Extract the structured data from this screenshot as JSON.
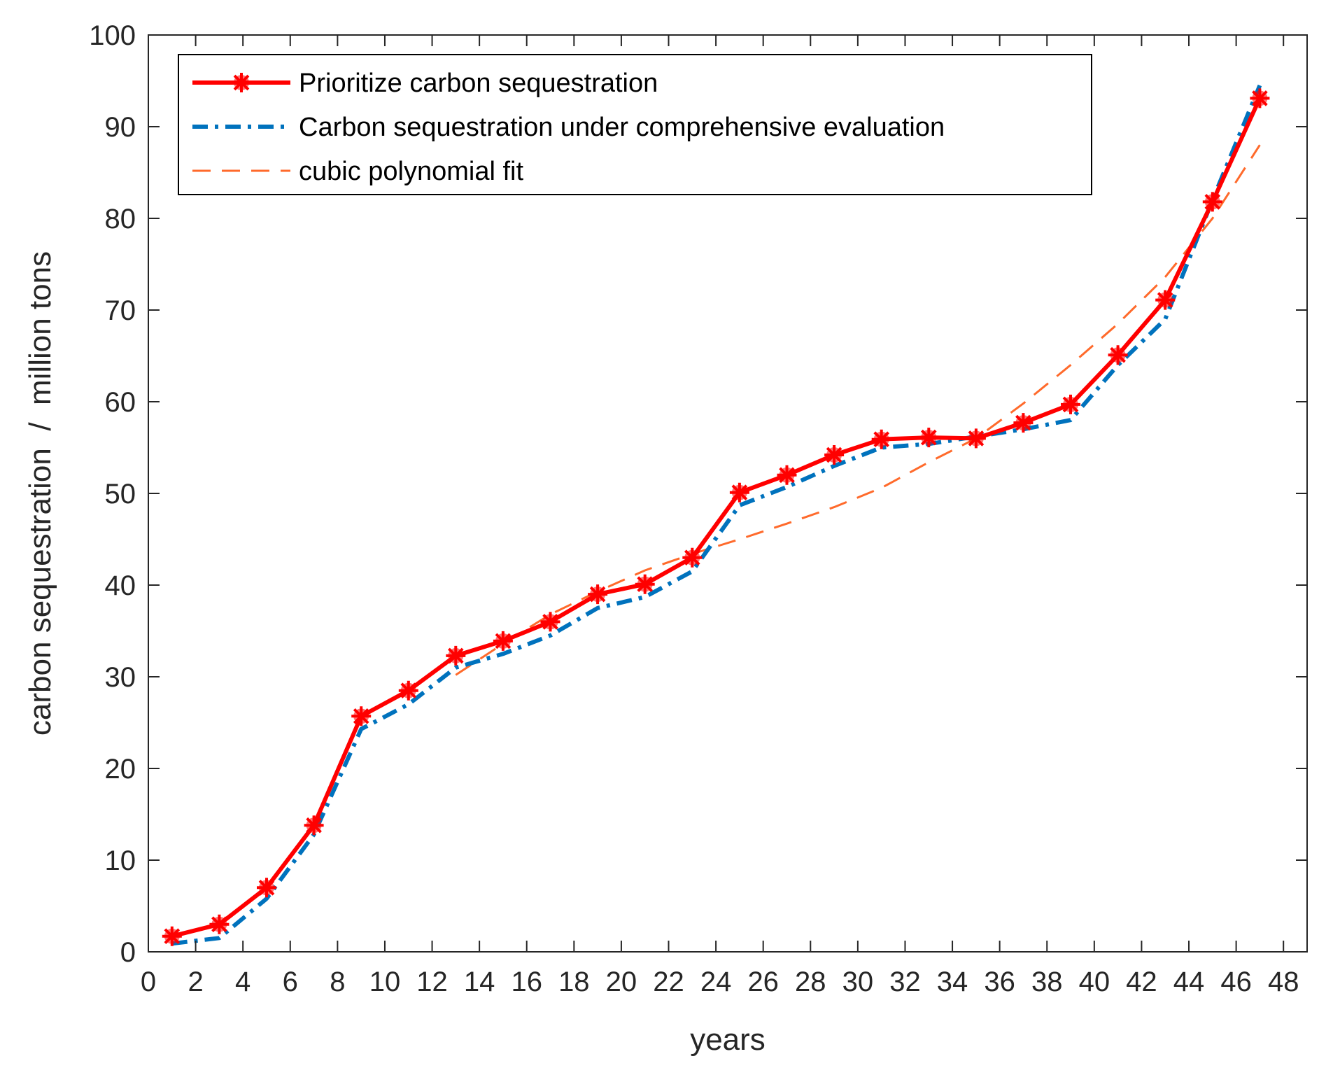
{
  "chart_data": {
    "type": "line",
    "title": "",
    "xlabel": "years",
    "ylabel": "carbon sequestration  /  million tons",
    "xlim": [
      0,
      49
    ],
    "ylim": [
      0,
      100
    ],
    "xticks": [
      0,
      2,
      4,
      6,
      8,
      10,
      12,
      14,
      16,
      18,
      20,
      22,
      24,
      26,
      28,
      30,
      32,
      34,
      36,
      38,
      40,
      42,
      44,
      46,
      48
    ],
    "yticks": [
      0,
      10,
      20,
      30,
      40,
      50,
      60,
      70,
      80,
      90,
      100
    ],
    "grid": false,
    "legend_position": "top-left",
    "series": [
      {
        "name": "Prioritize carbon sequestration",
        "color": "#ff0000",
        "style": "solid-with-star-markers",
        "x": [
          1,
          3,
          5,
          7,
          9,
          11,
          13,
          15,
          17,
          19,
          21,
          23,
          25,
          27,
          29,
          31,
          33,
          35,
          37,
          39,
          41,
          43,
          45,
          47
        ],
        "values": [
          1.7,
          3.0,
          7.0,
          13.8,
          25.7,
          28.5,
          32.3,
          33.9,
          36.0,
          39.0,
          40.1,
          43.0,
          50.1,
          52.0,
          54.2,
          55.9,
          56.1,
          56.0,
          57.7,
          59.7,
          65.1,
          71.1,
          81.8,
          93.1
        ]
      },
      {
        "name": "Carbon sequestration under comprehensive evaluation",
        "color": "#0072bd",
        "style": "dash-dot",
        "x": [
          1,
          3,
          5,
          7,
          9,
          11,
          13,
          15,
          17,
          19,
          21,
          23,
          25,
          27,
          29,
          31,
          33,
          35,
          37,
          39,
          41,
          43,
          45,
          47
        ],
        "values": [
          0.9,
          1.5,
          5.8,
          12.8,
          24.3,
          27.0,
          31.0,
          32.5,
          34.5,
          37.5,
          38.7,
          41.5,
          48.7,
          50.7,
          53.0,
          55.0,
          55.4,
          56.2,
          57.0,
          58.0,
          64.0,
          69.0,
          82.0,
          94.5
        ]
      },
      {
        "name": "cubic polynomial fit",
        "color": "#ff6a2b",
        "style": "dashed",
        "x": [
          13,
          15,
          17,
          19,
          21,
          23,
          25,
          27,
          29,
          31,
          33,
          35,
          37,
          39,
          41,
          43,
          45,
          47
        ],
        "values": [
          30.2,
          33.6,
          36.8,
          39.3,
          41.6,
          43.4,
          45.0,
          46.7,
          48.5,
          50.6,
          53.4,
          56.0,
          59.8,
          64.0,
          68.5,
          73.6,
          80.0,
          88.0
        ]
      }
    ]
  }
}
